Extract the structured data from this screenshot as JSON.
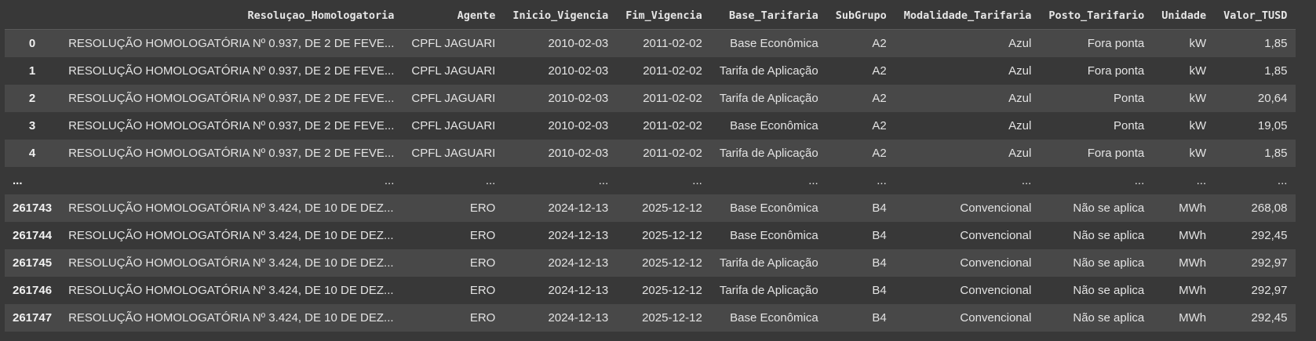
{
  "table": {
    "columns": [
      "Resoluçao_Homologatoria",
      "Agente",
      "Inicio_Vigencia",
      "Fim_Vigencia",
      "Base_Tarifaria",
      "SubGrupo",
      "Modalidade_Tarifaria",
      "Posto_Tarifario",
      "Unidade",
      "Valor_TUSD"
    ],
    "rows": [
      {
        "index": "0",
        "cells": [
          "RESOLUÇÃO HOMOLOGATÓRIA Nº 0.937, DE 2 DE FEVE...",
          "CPFL JAGUARI",
          "2010-02-03",
          "2011-02-02",
          "Base Econômica",
          "A2",
          "Azul",
          "Fora ponta",
          "kW",
          "1,85"
        ]
      },
      {
        "index": "1",
        "cells": [
          "RESOLUÇÃO HOMOLOGATÓRIA Nº 0.937, DE 2 DE FEVE...",
          "CPFL JAGUARI",
          "2010-02-03",
          "2011-02-02",
          "Tarifa de Aplicação",
          "A2",
          "Azul",
          "Fora ponta",
          "kW",
          "1,85"
        ]
      },
      {
        "index": "2",
        "cells": [
          "RESOLUÇÃO HOMOLOGATÓRIA Nº 0.937, DE 2 DE FEVE...",
          "CPFL JAGUARI",
          "2010-02-03",
          "2011-02-02",
          "Tarifa de Aplicação",
          "A2",
          "Azul",
          "Ponta",
          "kW",
          "20,64"
        ]
      },
      {
        "index": "3",
        "cells": [
          "RESOLUÇÃO HOMOLOGATÓRIA Nº 0.937, DE 2 DE FEVE...",
          "CPFL JAGUARI",
          "2010-02-03",
          "2011-02-02",
          "Base Econômica",
          "A2",
          "Azul",
          "Ponta",
          "kW",
          "19,05"
        ]
      },
      {
        "index": "4",
        "cells": [
          "RESOLUÇÃO HOMOLOGATÓRIA Nº 0.937, DE 2 DE FEVE...",
          "CPFL JAGUARI",
          "2010-02-03",
          "2011-02-02",
          "Tarifa de Aplicação",
          "A2",
          "Azul",
          "Fora ponta",
          "kW",
          "1,85"
        ]
      },
      {
        "index": "...",
        "cells": [
          "...",
          "...",
          "...",
          "...",
          "...",
          "...",
          "...",
          "...",
          "...",
          "..."
        ]
      },
      {
        "index": "261743",
        "cells": [
          "RESOLUÇÃO HOMOLOGATÓRIA Nº 3.424, DE 10 DE DEZ...",
          "ERO",
          "2024-12-13",
          "2025-12-12",
          "Base Econômica",
          "B4",
          "Convencional",
          "Não se aplica",
          "MWh",
          "268,08"
        ]
      },
      {
        "index": "261744",
        "cells": [
          "RESOLUÇÃO HOMOLOGATÓRIA Nº 3.424, DE 10 DE DEZ...",
          "ERO",
          "2024-12-13",
          "2025-12-12",
          "Base Econômica",
          "B4",
          "Convencional",
          "Não se aplica",
          "MWh",
          "292,45"
        ]
      },
      {
        "index": "261745",
        "cells": [
          "RESOLUÇÃO HOMOLOGATÓRIA Nº 3.424, DE 10 DE DEZ...",
          "ERO",
          "2024-12-13",
          "2025-12-12",
          "Tarifa de Aplicação",
          "B4",
          "Convencional",
          "Não se aplica",
          "MWh",
          "292,97"
        ]
      },
      {
        "index": "261746",
        "cells": [
          "RESOLUÇÃO HOMOLOGATÓRIA Nº 3.424, DE 10 DE DEZ...",
          "ERO",
          "2024-12-13",
          "2025-12-12",
          "Tarifa de Aplicação",
          "B4",
          "Convencional",
          "Não se aplica",
          "MWh",
          "292,97"
        ]
      },
      {
        "index": "261747",
        "cells": [
          "RESOLUÇÃO HOMOLOGATÓRIA Nº 3.424, DE 10 DE DEZ...",
          "ERO",
          "2024-12-13",
          "2025-12-12",
          "Base Econômica",
          "B4",
          "Convencional",
          "Não se aplica",
          "MWh",
          "292,45"
        ]
      }
    ]
  }
}
